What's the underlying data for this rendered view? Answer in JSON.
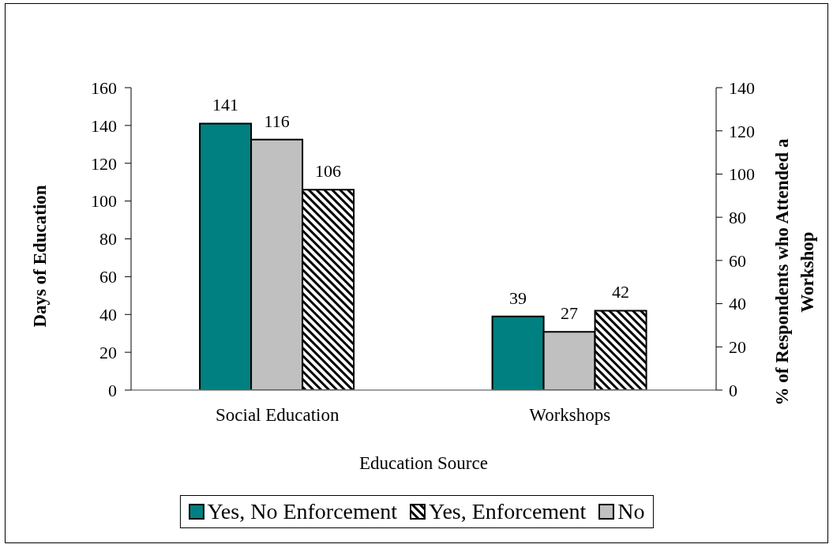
{
  "chart_data": {
    "type": "bar",
    "xlabel": "Education Source",
    "ylabel": "Days of Education",
    "y2label": "% of Respondents who Attended a Workshop",
    "categories": [
      "Social Education",
      "Workshops"
    ],
    "series": [
      {
        "name": "Yes, No Enforcement",
        "color": "#008080",
        "values": [
          141,
          39
        ]
      },
      {
        "name": "No",
        "color": "#c0c0c0",
        "values": [
          116,
          27
        ],
        "axis": "y2"
      },
      {
        "name": "Yes, Enforcement",
        "color": "#000000",
        "values": [
          106,
          42
        ]
      }
    ],
    "ylim": [
      0,
      160
    ],
    "yticks": [
      0,
      20,
      40,
      60,
      80,
      100,
      120,
      140,
      160
    ],
    "y2lim": [
      0,
      140
    ],
    "y2ticks": [
      0,
      20,
      40,
      60,
      80,
      100,
      120,
      140
    ],
    "data_labels": true,
    "legend": "bottom"
  }
}
